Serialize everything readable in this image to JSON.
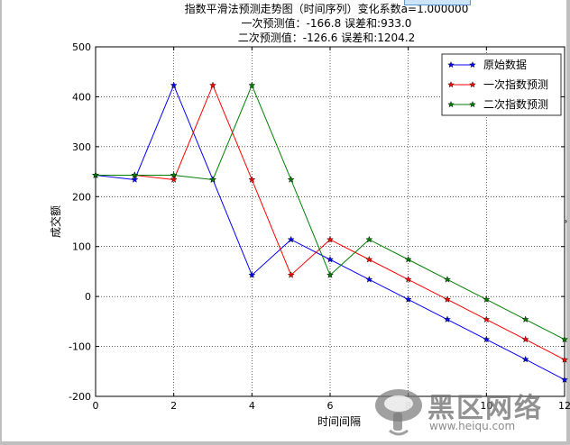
{
  "chart_data": {
    "type": "line",
    "title_lines": [
      "指数平滑法预测走势图（时间序列）变化系数a=1.000000",
      "一次预测值：-166.8   误差和:933.0",
      "二次预测值：-126.6   误差和:1204.2"
    ],
    "xlabel": "时间间隔",
    "ylabel": "成交额",
    "xlim": [
      0,
      12
    ],
    "ylim": [
      -200,
      500
    ],
    "x_ticks": [
      0,
      2,
      4,
      6,
      8,
      10,
      12
    ],
    "y_ticks": [
      -200,
      -100,
      0,
      100,
      200,
      300,
      400,
      500
    ],
    "grid": true,
    "legend_position": "top-right",
    "x": [
      0,
      1,
      2,
      3,
      4,
      5,
      6,
      7,
      8,
      9,
      10,
      11,
      12
    ],
    "series": [
      {
        "name": "原始数据",
        "color": "#0000ff",
        "x": [
          0,
          1,
          2,
          3,
          4,
          5,
          6,
          7,
          8,
          9,
          10,
          11,
          12
        ],
        "values": [
          243,
          234,
          423,
          234,
          43,
          114,
          74,
          34,
          -6,
          -46,
          -86,
          -126,
          -166.8
        ]
      },
      {
        "name": "一次指数预测",
        "color": "#ff0000",
        "x": [
          0,
          1,
          2,
          3,
          4,
          5,
          6,
          7,
          8,
          9,
          10,
          11,
          12
        ],
        "values": [
          243,
          243,
          234,
          423,
          234,
          43,
          114,
          74,
          34,
          -6,
          -46,
          -86,
          -126.6
        ]
      },
      {
        "name": "二次指数预测",
        "color": "#007f00",
        "x": [
          0,
          1,
          2,
          3,
          4,
          5,
          6,
          7,
          8,
          9,
          10,
          11,
          12
        ],
        "values": [
          243,
          243,
          243,
          234,
          423,
          234,
          43,
          114,
          74,
          34,
          -6,
          -46,
          -86
        ]
      }
    ]
  },
  "watermark": {
    "title": "黑区网络",
    "url": "www.heiqu.com"
  },
  "icons": {
    "nav": "chevron-right-icon",
    "logo": "mushroom-logo-icon"
  }
}
